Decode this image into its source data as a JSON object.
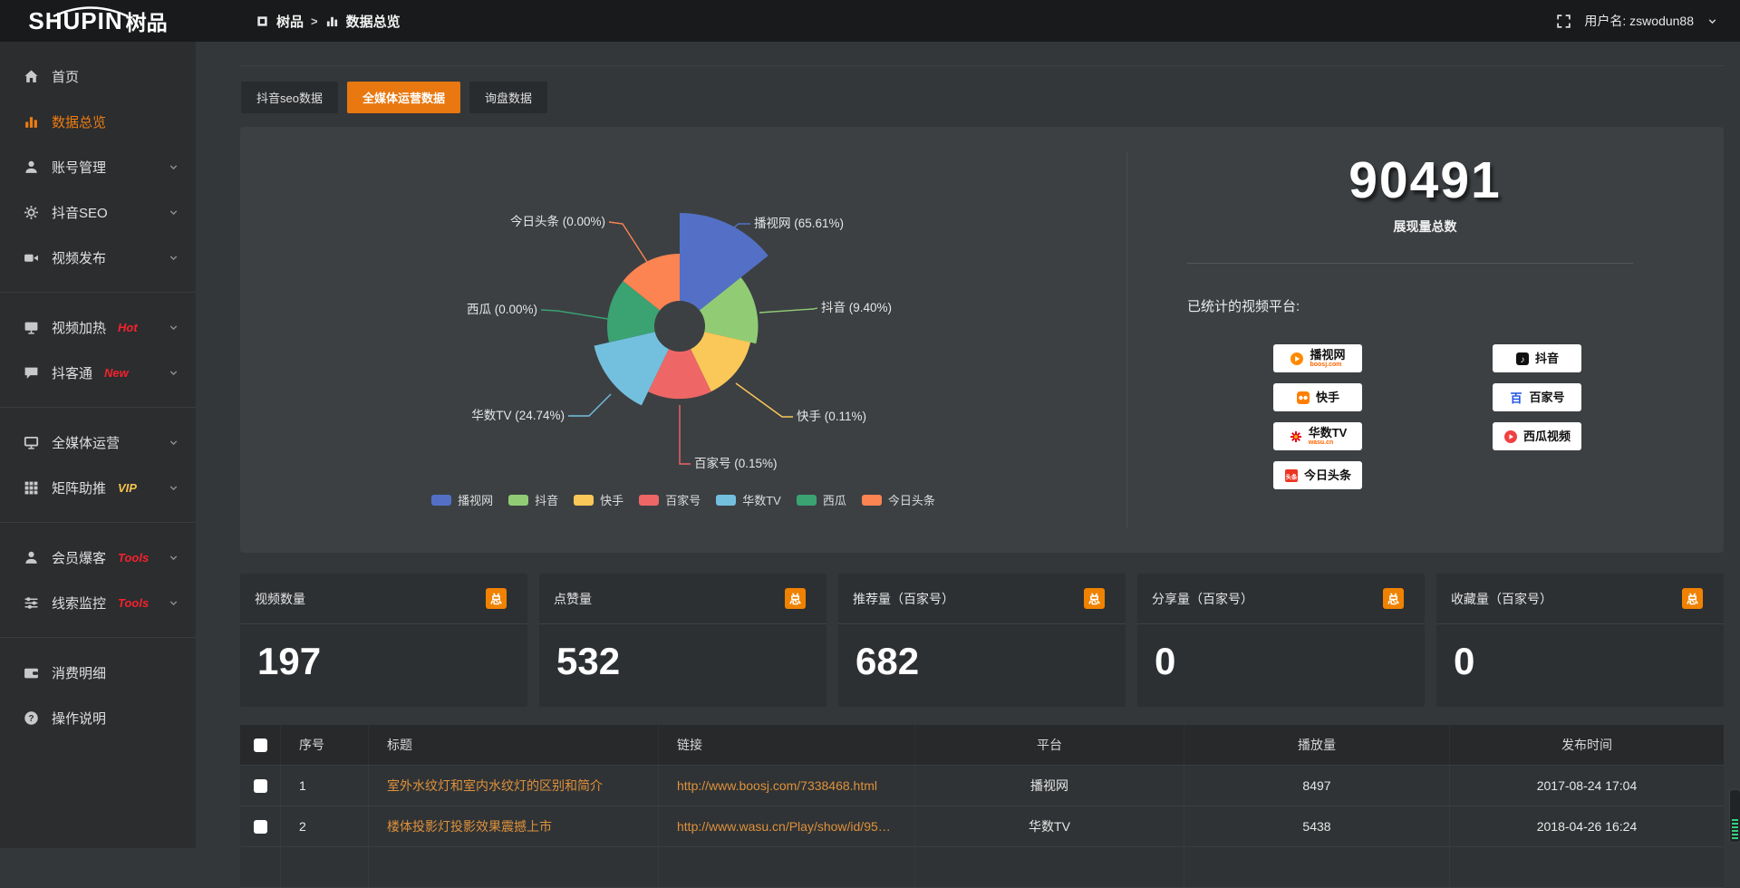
{
  "colors": {
    "accent_orange": "#ee7c12",
    "tab_active_bg": "#e8780f",
    "badge_orange": "#f08200",
    "link_orange": "#de913c",
    "hot_red": "#f5222d",
    "vip_yellow": "#f6c34e",
    "topbar_bg": "#181a1b",
    "sidebar_bg": "#2b2d2f",
    "page_bg": "#34373a",
    "panel_bg": "#3c4043"
  },
  "topbar": {
    "logo_en": "SHUPIN",
    "logo_cn": "树品",
    "breadcrumb": [
      "树品",
      "数据总览"
    ],
    "breadcrumb_sep": ">",
    "user": "用户名: zswodun88"
  },
  "sidebar": {
    "groups": [
      {
        "items": [
          {
            "id": "home",
            "icon": "home",
            "label": "首页",
            "active": false,
            "chevron": false
          },
          {
            "id": "data-overview",
            "icon": "chart",
            "label": "数据总览",
            "active": true,
            "chevron": false
          },
          {
            "id": "account-mgmt",
            "icon": "user",
            "label": "账号管理",
            "active": false,
            "chevron": true
          },
          {
            "id": "douyin-seo",
            "icon": "gear",
            "label": "抖音SEO",
            "active": false,
            "chevron": true
          },
          {
            "id": "video-publish",
            "icon": "video",
            "label": "视频发布",
            "active": false,
            "chevron": true
          }
        ]
      },
      {
        "items": [
          {
            "id": "video-heating",
            "icon": "screen",
            "label": "视频加热",
            "badge": "Hot",
            "badge_color": "#f5222d",
            "chevron": true
          },
          {
            "id": "douketong",
            "icon": "chat",
            "label": "抖客通",
            "badge": "New",
            "badge_color": "#f5222d",
            "chevron": true
          }
        ]
      },
      {
        "items": [
          {
            "id": "media-operations",
            "icon": "monitor",
            "label": "全媒体运营",
            "chevron": true
          },
          {
            "id": "matrix-boost",
            "icon": "grid",
            "label": "矩阵助推",
            "badge": "VIP",
            "badge_color": "#f6c34e",
            "chevron": true
          }
        ]
      },
      {
        "items": [
          {
            "id": "member-baoke",
            "icon": "person",
            "label": "会员爆客",
            "badge": "Tools",
            "badge_color": "#f5222d",
            "chevron": true
          },
          {
            "id": "leads-monitor",
            "icon": "sliders",
            "label": "线索监控",
            "badge": "Tools",
            "badge_color": "#f5222d",
            "chevron": true
          }
        ]
      },
      {
        "items": [
          {
            "id": "expense-details",
            "icon": "wallet",
            "label": "消费明细",
            "chevron": false
          },
          {
            "id": "instructions",
            "icon": "question",
            "label": "操作说明",
            "chevron": false
          }
        ]
      }
    ]
  },
  "tabs": [
    {
      "id": "douyin-seo-data",
      "label": "抖音seo数据",
      "active": false
    },
    {
      "id": "media-ops-data",
      "label": "全媒体运营数据",
      "active": true
    },
    {
      "id": "inquiry-data",
      "label": "询盘数据",
      "active": false
    }
  ],
  "overview": {
    "total": "90491",
    "total_label": "展现量总数",
    "platforms_title": "已统计的视频平台:",
    "platforms": [
      {
        "id": "boosj",
        "name": "播视网",
        "sub": "boosj.com"
      },
      {
        "id": "kuaishou",
        "name": "快手",
        "sub": ""
      },
      {
        "id": "wasu",
        "name": "华数TV",
        "sub": "wasu.cn"
      },
      {
        "id": "toutiao",
        "name": "今日头条",
        "sub": ""
      },
      {
        "id": "douyin",
        "name": "抖音",
        "sub": ""
      },
      {
        "id": "baijiahao",
        "name": "百家号",
        "sub": ""
      },
      {
        "id": "xigua",
        "name": "西瓜视频",
        "sub": ""
      }
    ]
  },
  "chart_data": {
    "type": "pie",
    "variant": "nightingale-rose-donut",
    "unit": "percent",
    "legend_position": "bottom",
    "slices": [
      {
        "name": "播视网",
        "value": 65.61,
        "pct": "65.61%",
        "color": "#5470c6"
      },
      {
        "name": "抖音",
        "value": 9.4,
        "pct": "9.40%",
        "color": "#91cc75"
      },
      {
        "name": "快手",
        "value": 0.11,
        "pct": "0.11%",
        "color": "#fac858"
      },
      {
        "name": "百家号",
        "value": 0.15,
        "pct": "0.15%",
        "color": "#ee6666"
      },
      {
        "name": "华数TV",
        "value": 24.74,
        "pct": "24.74%",
        "color": "#73c0de"
      },
      {
        "name": "西瓜",
        "value": 0.0,
        "pct": "0.00%",
        "color": "#3ba272"
      },
      {
        "name": "今日头条",
        "value": 0.0,
        "pct": "0.00%",
        "color": "#fc8452"
      }
    ],
    "legend": [
      "播视网",
      "抖音",
      "快手",
      "百家号",
      "华数TV",
      "西瓜",
      "今日头条"
    ]
  },
  "stat_cards": [
    {
      "id": "videos",
      "label": "视频数量",
      "badge": "总",
      "value": "197"
    },
    {
      "id": "likes",
      "label": "点赞量",
      "badge": "总",
      "value": "532"
    },
    {
      "id": "recommendations",
      "label": "推荐量（百家号）",
      "badge": "总",
      "value": "682"
    },
    {
      "id": "shares",
      "label": "分享量（百家号）",
      "badge": "总",
      "value": "0"
    },
    {
      "id": "favorites",
      "label": "收藏量（百家号）",
      "badge": "总",
      "value": "0"
    }
  ],
  "table": {
    "columns": [
      "",
      "序号",
      "标题",
      "链接",
      "平台",
      "播放量",
      "发布时间"
    ],
    "rows": [
      {
        "no": "1",
        "title": "室外水纹灯和室内水纹灯的区别和简介",
        "link": "http://www.boosj.com/7338468.html",
        "platform": "播视网",
        "plays": "8497",
        "time": "2017-08-24 17:04"
      },
      {
        "no": "2",
        "title": "楼体投影灯投影效果震撼上市",
        "link": "http://www.wasu.cn/Play/show/id/952…",
        "platform": "华数TV",
        "plays": "5438",
        "time": "2018-04-26 16:24"
      },
      {
        "no": "",
        "title": "",
        "link": "",
        "platform": "",
        "plays": "",
        "time": ""
      }
    ]
  }
}
